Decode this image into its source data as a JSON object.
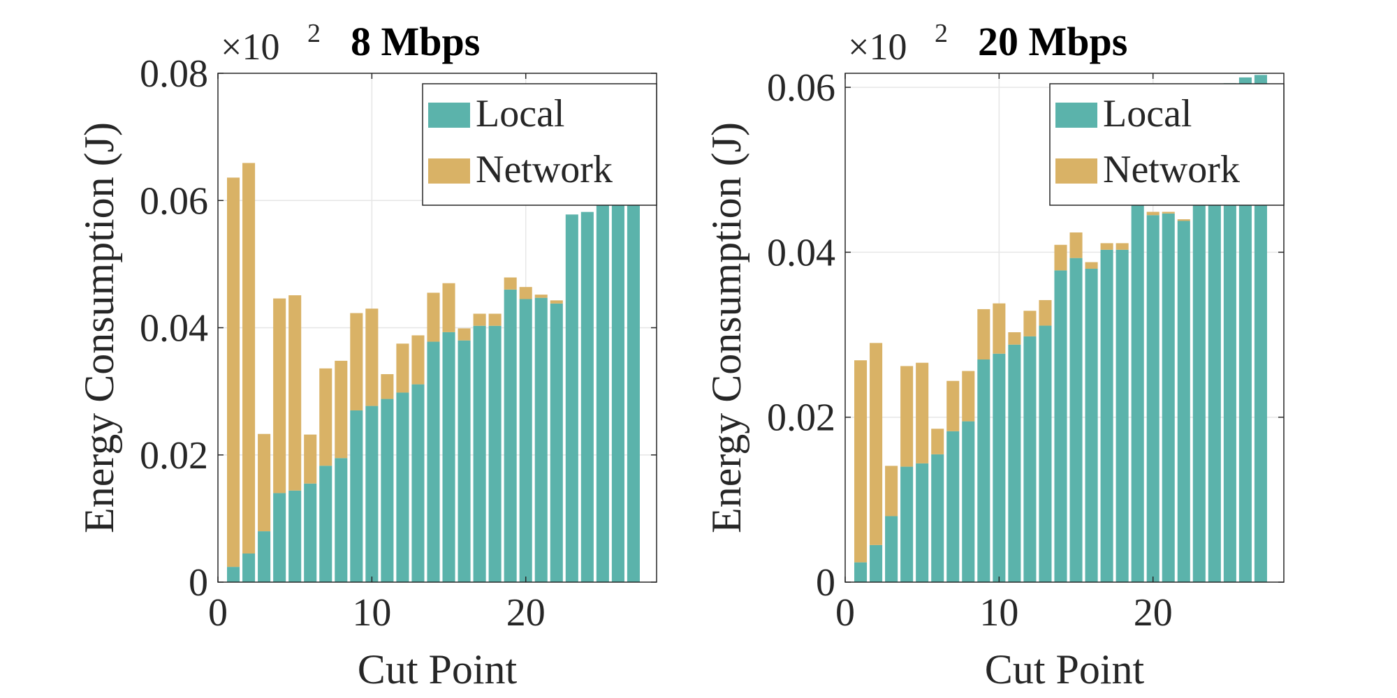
{
  "chart_data": [
    {
      "type": "bar",
      "stacked": true,
      "title": "8 Mbps",
      "xlabel": "Cut Point",
      "ylabel": "Energy Consumption (J)",
      "y_exponent_label": "×10",
      "y_exponent_power": "2",
      "xlim": [
        0,
        28.5
      ],
      "ylim": [
        0,
        0.08
      ],
      "xticks": [
        0,
        10,
        20
      ],
      "yticks": [
        0,
        0.02,
        0.04,
        0.06,
        0.08
      ],
      "ytick_labels": [
        "0",
        "0.02",
        "0.04",
        "0.06",
        "0.08"
      ],
      "grid": true,
      "legend_position": "top-right",
      "x": [
        1,
        2,
        3,
        4,
        5,
        6,
        7,
        8,
        9,
        10,
        11,
        12,
        13,
        14,
        15,
        16,
        17,
        18,
        19,
        20,
        21,
        22,
        23,
        24,
        25,
        26,
        27
      ],
      "series": [
        {
          "name": "Local",
          "values": [
            0.0024,
            0.0045,
            0.008,
            0.014,
            0.0144,
            0.0155,
            0.0183,
            0.0195,
            0.027,
            0.0277,
            0.0288,
            0.0298,
            0.0311,
            0.0378,
            0.0393,
            0.038,
            0.0403,
            0.0403,
            0.046,
            0.0445,
            0.0447,
            0.0438,
            0.0578,
            0.0582,
            0.0593,
            0.0593,
            0.0593
          ]
        },
        {
          "name": "Network",
          "values": [
            0.0612,
            0.0614,
            0.0153,
            0.0306,
            0.0307,
            0.0077,
            0.0153,
            0.0153,
            0.0153,
            0.0153,
            0.0039,
            0.0077,
            0.0077,
            0.0077,
            0.0077,
            0.0019,
            0.0019,
            0.0019,
            0.0019,
            0.0019,
            0.0005,
            0.0005,
            0.0,
            0.0,
            0.0,
            0.0,
            0.0
          ]
        }
      ]
    },
    {
      "type": "bar",
      "stacked": true,
      "title": "20 Mbps",
      "xlabel": "Cut Point",
      "ylabel": "Energy Consumption (J)",
      "y_exponent_label": "×10",
      "y_exponent_power": "2",
      "xlim": [
        0,
        28.5
      ],
      "ylim": [
        0,
        0.0617
      ],
      "xticks": [
        0,
        10,
        20
      ],
      "yticks": [
        0,
        0.02,
        0.04,
        0.06
      ],
      "ytick_labels": [
        "0",
        "0.02",
        "0.04",
        "0.06"
      ],
      "grid": true,
      "legend_position": "top-right",
      "x": [
        1,
        2,
        3,
        4,
        5,
        6,
        7,
        8,
        9,
        10,
        11,
        12,
        13,
        14,
        15,
        16,
        17,
        18,
        19,
        20,
        21,
        22,
        23,
        24,
        25,
        26,
        27
      ],
      "series": [
        {
          "name": "Local",
          "values": [
            0.0024,
            0.0045,
            0.008,
            0.014,
            0.0144,
            0.0155,
            0.0183,
            0.0195,
            0.027,
            0.0277,
            0.0288,
            0.0298,
            0.0311,
            0.0378,
            0.0393,
            0.038,
            0.0403,
            0.0403,
            0.046,
            0.0445,
            0.0447,
            0.0438,
            0.0578,
            0.0582,
            0.0605,
            0.0612,
            0.0615
          ]
        },
        {
          "name": "Network",
          "values": [
            0.0245,
            0.0245,
            0.0061,
            0.0122,
            0.0122,
            0.0031,
            0.0061,
            0.0061,
            0.0061,
            0.0061,
            0.0015,
            0.0031,
            0.0031,
            0.0031,
            0.0031,
            0.0008,
            0.0008,
            0.0008,
            0.0008,
            0.0004,
            0.0002,
            0.0002,
            0.0,
            0.0,
            0.0,
            0.0,
            0.0
          ]
        }
      ]
    }
  ],
  "colors": {
    "local": "#5bb3ab",
    "network": "#d9b266",
    "axis": "#262626",
    "grid": "#e6e6e6",
    "background": "#ffffff"
  }
}
